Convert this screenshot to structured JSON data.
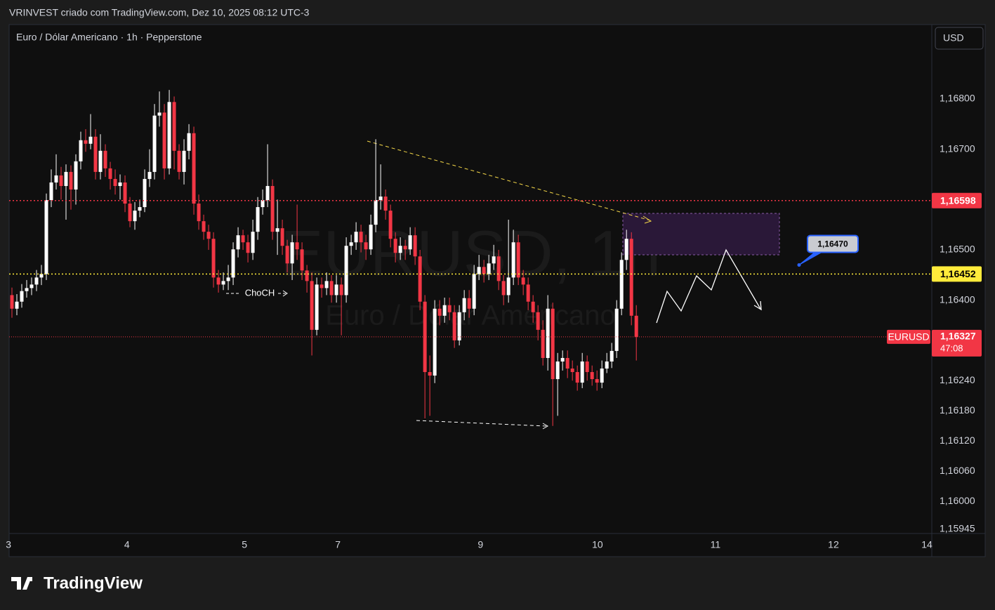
{
  "header": "VRINVEST criado com TradingView.com, Dez 10, 2025 08:12 UTC-3",
  "brand": "TradingView",
  "chart_data": {
    "type": "candlestick",
    "title": "Euro / Dólar Americano · 1h · Pepperstone",
    "currency": "USD",
    "watermark": [
      "EURUSD, 1h",
      "Euro / Dólar Americano"
    ],
    "up_color": "#ffffff",
    "down_color": "#f23645",
    "open": [
      1.1641,
      1.16383,
      1.16397,
      1.16418,
      1.16424,
      1.16431,
      1.16445,
      1.16452,
      1.16599,
      1.16634,
      1.16648,
      1.16627,
      1.16655,
      1.1662,
      1.16676,
      1.16718,
      1.16711,
      1.16725,
      1.16655,
      1.16697,
      1.16662,
      1.16641,
      1.16627,
      1.16634,
      1.16592,
      1.16557,
      1.16578,
      1.16585,
      1.16641,
      1.16655,
      1.16767,
      1.16773,
      1.16662,
      1.16794,
      1.16697,
      1.16655,
      1.16697,
      1.16732,
      1.16592,
      1.16557,
      1.16536,
      1.16522,
      1.16445,
      1.16431,
      1.16438,
      1.16445,
      1.16501,
      1.16529,
      1.16515,
      1.16494,
      1.16536,
      1.16585,
      1.16599,
      1.16627,
      1.16536,
      1.16543,
      1.16508,
      1.16473,
      1.16515,
      1.16501,
      1.16459,
      1.16438,
      1.16341,
      1.16431,
      1.16424,
      1.16438,
      1.1641,
      1.16431,
      1.1641,
      1.16508,
      1.16515,
      1.16536,
      1.16515,
      1.16501,
      1.1655,
      1.16599,
      1.16606,
      1.16578,
      1.16522,
      1.16494,
      1.16508,
      1.16501,
      1.16529,
      1.16487,
      1.16397,
      1.16257,
      1.1625,
      1.16383,
      1.16369,
      1.1639,
      1.16376,
      1.1632,
      1.16376,
      1.16404,
      1.16383,
      1.16452,
      1.16466,
      1.16452,
      1.16473,
      1.16487,
      1.16438,
      1.1641,
      1.16445,
      1.16515,
      1.16445,
      1.16431,
      1.16397,
      1.16376,
      1.16341,
      1.16285,
      1.16383,
      1.16243,
      1.16278,
      1.16285,
      1.16264,
      1.16257,
      1.16236,
      1.16278,
      1.16257,
      1.16243,
      1.16236,
      1.16264,
      1.16278,
      1.16299,
      1.16383,
      1.1648,
      1.16522,
      1.16369
    ],
    "high": [
      1.16425,
      1.16412,
      1.16432,
      1.1644,
      1.16445,
      1.1646,
      1.1647,
      1.16612,
      1.1666,
      1.1669,
      1.16665,
      1.1667,
      1.16668,
      1.1669,
      1.16735,
      1.1674,
      1.1677,
      1.1674,
      1.1673,
      1.1671,
      1.16675,
      1.1666,
      1.1665,
      1.16648,
      1.16605,
      1.16595,
      1.166,
      1.1666,
      1.167,
      1.1679,
      1.16815,
      1.1679,
      1.16818,
      1.16805,
      1.1671,
      1.1672,
      1.1675,
      1.16745,
      1.1661,
      1.1657,
      1.1655,
      1.16535,
      1.1646,
      1.16455,
      1.1647,
      1.16515,
      1.16545,
      1.1654,
      1.1653,
      1.1656,
      1.16605,
      1.1662,
      1.1671,
      1.1664,
      1.166,
      1.1656,
      1.1652,
      1.1653,
      1.1659,
      1.16515,
      1.1647,
      1.16455,
      1.16445,
      1.16445,
      1.16455,
      1.1645,
      1.1645,
      1.16445,
      1.16525,
      1.1653,
      1.16555,
      1.1655,
      1.1653,
      1.1657,
      1.1672,
      1.1667,
      1.1662,
      1.1659,
      1.16535,
      1.16525,
      1.1652,
      1.16545,
      1.16545,
      1.165,
      1.1641,
      1.1629,
      1.164,
      1.164,
      1.16405,
      1.16405,
      1.1639,
      1.1639,
      1.1642,
      1.1642,
      1.1647,
      1.1649,
      1.1648,
      1.1649,
      1.1651,
      1.165,
      1.1645,
      1.1656,
      1.1654,
      1.1653,
      1.1646,
      1.16445,
      1.1641,
      1.1639,
      1.1636,
      1.1641,
      1.16395,
      1.16295,
      1.163,
      1.163,
      1.1628,
      1.1627,
      1.16295,
      1.1629,
      1.1627,
      1.1626,
      1.1628,
      1.16295,
      1.16315,
      1.164,
      1.16495,
      1.1654,
      1.16535,
      1.1639
    ],
    "low": [
      1.16365,
      1.1637,
      1.16385,
      1.16405,
      1.1641,
      1.16418,
      1.1643,
      1.1644,
      1.16585,
      1.1662,
      1.166,
      1.1656,
      1.1658,
      1.1659,
      1.1666,
      1.16695,
      1.167,
      1.1664,
      1.1664,
      1.16645,
      1.1662,
      1.1661,
      1.166,
      1.16575,
      1.16545,
      1.1654,
      1.16565,
      1.16575,
      1.16625,
      1.1664,
      1.16745,
      1.1664,
      1.1665,
      1.1666,
      1.1664,
      1.1663,
      1.1668,
      1.1657,
      1.1654,
      1.1652,
      1.165,
      1.16425,
      1.16415,
      1.1642,
      1.1642,
      1.1643,
      1.16485,
      1.165,
      1.16475,
      1.1648,
      1.1652,
      1.1657,
      1.16585,
      1.1652,
      1.1649,
      1.1649,
      1.16455,
      1.1644,
      1.1648,
      1.1644,
      1.16415,
      1.1629,
      1.1633,
      1.16405,
      1.1641,
      1.16395,
      1.16395,
      1.1633,
      1.16395,
      1.1649,
      1.165,
      1.16495,
      1.1648,
      1.1649,
      1.16535,
      1.1658,
      1.1656,
      1.16505,
      1.16475,
      1.1648,
      1.1648,
      1.1649,
      1.1647,
      1.1638,
      1.16165,
      1.1617,
      1.16235,
      1.1635,
      1.16355,
      1.1636,
      1.16305,
      1.1631,
      1.1636,
      1.16365,
      1.1637,
      1.1644,
      1.16435,
      1.1644,
      1.1646,
      1.1642,
      1.1639,
      1.16395,
      1.1643,
      1.1643,
      1.1641,
      1.1638,
      1.16355,
      1.1632,
      1.1627,
      1.1626,
      1.1615,
      1.1617,
      1.1626,
      1.16245,
      1.1624,
      1.1622,
      1.16225,
      1.1624,
      1.1623,
      1.1622,
      1.16225,
      1.16255,
      1.16265,
      1.16285,
      1.1637,
      1.1646,
      1.1635,
      1.1628
    ],
    "close": [
      1.16383,
      1.16397,
      1.16418,
      1.16424,
      1.16431,
      1.16445,
      1.16452,
      1.16599,
      1.16634,
      1.16648,
      1.16627,
      1.16655,
      1.1662,
      1.16676,
      1.16718,
      1.16711,
      1.16725,
      1.16655,
      1.16697,
      1.16662,
      1.16641,
      1.16627,
      1.16634,
      1.16592,
      1.16557,
      1.16578,
      1.16585,
      1.16641,
      1.16655,
      1.16767,
      1.16773,
      1.16662,
      1.16794,
      1.16697,
      1.16655,
      1.16697,
      1.16732,
      1.16592,
      1.16557,
      1.16536,
      1.16522,
      1.16445,
      1.16431,
      1.16438,
      1.16445,
      1.16501,
      1.16529,
      1.16515,
      1.16494,
      1.16536,
      1.16585,
      1.16599,
      1.16627,
      1.16536,
      1.16543,
      1.16508,
      1.16473,
      1.16515,
      1.16501,
      1.16459,
      1.16438,
      1.16341,
      1.16431,
      1.16424,
      1.16438,
      1.1641,
      1.16431,
      1.1641,
      1.16508,
      1.16515,
      1.16536,
      1.16515,
      1.16501,
      1.1655,
      1.16599,
      1.16606,
      1.16578,
      1.16522,
      1.16494,
      1.16508,
      1.16501,
      1.16529,
      1.16487,
      1.16397,
      1.16257,
      1.1625,
      1.16383,
      1.16369,
      1.1639,
      1.16376,
      1.1632,
      1.16376,
      1.16404,
      1.16383,
      1.16452,
      1.16466,
      1.16452,
      1.16473,
      1.16487,
      1.16438,
      1.1641,
      1.16445,
      1.16515,
      1.16445,
      1.16431,
      1.16397,
      1.16376,
      1.16341,
      1.16285,
      1.16383,
      1.16243,
      1.16278,
      1.16285,
      1.16264,
      1.16257,
      1.16236,
      1.16278,
      1.16257,
      1.16243,
      1.16236,
      1.16264,
      1.16278,
      1.16299,
      1.16383,
      1.1648,
      1.16522,
      1.16369,
      1.16327
    ],
    "xlim": [
      -0.57,
      187.1
    ],
    "xticks": [
      {
        "value": -0.7,
        "label": "3"
      },
      {
        "value": 23.4,
        "label": "4"
      },
      {
        "value": 47.3,
        "label": "5"
      },
      {
        "value": 66.3,
        "label": "7"
      },
      {
        "value": 95.3,
        "label": "9"
      },
      {
        "value": 119.1,
        "label": "10"
      },
      {
        "value": 143.1,
        "label": "11"
      },
      {
        "value": 167.1,
        "label": "12"
      },
      {
        "value": 186.1,
        "label": "14"
      }
    ],
    "ylim": [
      1.15936,
      1.16948
    ],
    "yticks": [
      {
        "value": 1.168,
        "label": "1,16800"
      },
      {
        "value": 1.167,
        "label": "1,16700"
      },
      {
        "value": 1.165,
        "label": "1,16500"
      },
      {
        "value": 1.164,
        "label": "1,16400"
      },
      {
        "value": 1.1624,
        "label": "1,16240"
      },
      {
        "value": 1.1618,
        "label": "1,16180"
      },
      {
        "value": 1.1612,
        "label": "1,16120"
      },
      {
        "value": 1.1606,
        "label": "1,16060"
      },
      {
        "value": 1.16,
        "label": "1,16000"
      },
      {
        "value": 1.15945,
        "label": "1,15945"
      }
    ],
    "grid": false,
    "levels": [
      {
        "value": 1.16598,
        "label": "1,16598",
        "color": "#f23645"
      },
      {
        "value": 1.16452,
        "label": "1,16452",
        "color": "#ffeb3b"
      }
    ],
    "last_price": {
      "name": "EURUSD",
      "value": 1.16327,
      "label": "1,16327",
      "countdown": "47:08",
      "color": "#f23645"
    },
    "callout": {
      "value": 1.1647,
      "label": "1,16470"
    },
    "annotations": [
      "ChoCH"
    ]
  }
}
